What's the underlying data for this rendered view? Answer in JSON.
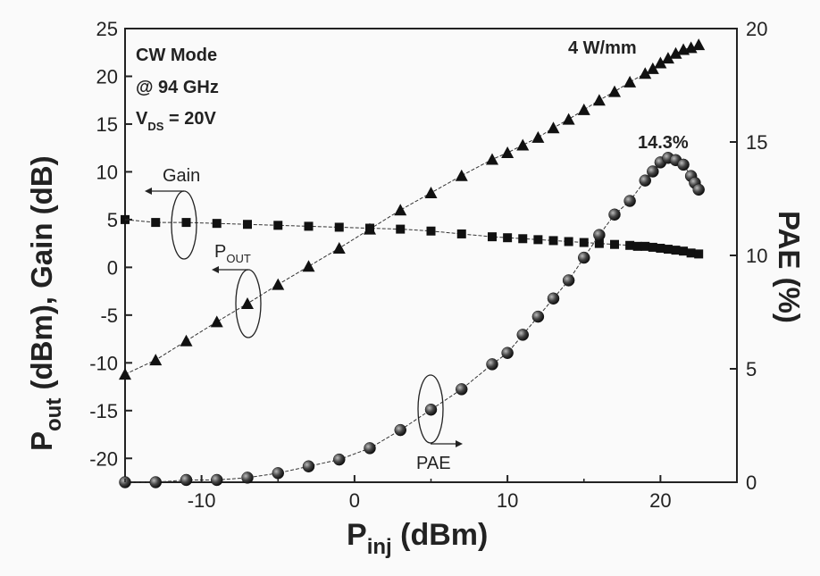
{
  "chart_data": {
    "type": "scatter",
    "title": "",
    "xlabel": "P",
    "xlabel_sub": "inj",
    "xlabel_unit": " (dBm)",
    "ylabel_left": "P",
    "ylabel_left_sub": "out",
    "ylabel_left_rest": " (dBm), Gain (dB)",
    "ylabel_right": "PAE (%)",
    "xlim": [
      -15,
      25
    ],
    "ylim_left": [
      -22.5,
      25
    ],
    "ylim_right": [
      0,
      20
    ],
    "x_ticks": [
      -10,
      0,
      10,
      20
    ],
    "y_left_ticks": [
      -20,
      -15,
      -10,
      -5,
      0,
      5,
      10,
      15,
      20,
      25
    ],
    "y_right_ticks": [
      0,
      5,
      10,
      15,
      20
    ],
    "grid": false,
    "series": [
      {
        "axis": "left",
        "marker": "triangle",
        "x": [
          -15,
          -13,
          -11,
          -9,
          -7,
          -5,
          -3,
          -1,
          1,
          3,
          5,
          7,
          9,
          10,
          11,
          12,
          13,
          14,
          15,
          16,
          17,
          18,
          19,
          19.5,
          20,
          20.5,
          21,
          21.5,
          22,
          22.5
        ],
        "y": [
          -11.2,
          -9.7,
          -7.7,
          -5.7,
          -3.8,
          -1.8,
          0.1,
          2,
          4,
          6,
          7.8,
          9.6,
          11.3,
          12,
          12.8,
          13.6,
          14.6,
          15.5,
          16.5,
          17.5,
          18.4,
          19.4,
          20.3,
          20.8,
          21.4,
          21.9,
          22.4,
          22.8,
          23,
          23.3
        ]
      },
      {
        "axis": "left",
        "marker": "square",
        "x": [
          -15,
          -13,
          -11,
          -9,
          -7,
          -5,
          -3,
          -1,
          1,
          3,
          5,
          7,
          9,
          10,
          11,
          12,
          13,
          14,
          15,
          16,
          17,
          18,
          18.5,
          19,
          19.5,
          20,
          20.5,
          21,
          21.5,
          22,
          22.5
        ],
        "y": [
          5,
          4.7,
          4.7,
          4.6,
          4.5,
          4.4,
          4.3,
          4.2,
          4.1,
          4,
          3.8,
          3.5,
          3.2,
          3.1,
          3,
          2.9,
          2.8,
          2.7,
          2.6,
          2.5,
          2.4,
          2.3,
          2.2,
          2.2,
          2.1,
          2,
          1.9,
          1.8,
          1.7,
          1.5,
          1.4
        ]
      },
      {
        "axis": "right",
        "marker": "sphere",
        "x": [
          -15,
          -13,
          -11,
          -9,
          -7,
          -5,
          -3,
          -1,
          1,
          3,
          5,
          7,
          9,
          10,
          11,
          12,
          13,
          14,
          15,
          16,
          17,
          18,
          19,
          19.5,
          20,
          20.5,
          21,
          21.5,
          22,
          22.25,
          22.5
        ],
        "y": [
          0,
          0,
          0.1,
          0.1,
          0.2,
          0.4,
          0.7,
          1,
          1.5,
          2.3,
          3.2,
          4.1,
          5.2,
          5.7,
          6.5,
          7.3,
          8.1,
          8.9,
          9.9,
          10.9,
          11.8,
          12.4,
          13.3,
          13.7,
          14.1,
          14.3,
          14.2,
          14,
          13.5,
          13.2,
          12.9
        ]
      }
    ],
    "annotations": {
      "cw_mode": "CW Mode",
      "freq": "@ 94 GHz",
      "vds_label": "V",
      "vds_sub": "DS",
      "vds_value": " = 20V",
      "power_density": "4 W/mm",
      "peak_pae": "14.3%",
      "gain_label": "Gain",
      "pout_label": "P",
      "pout_sub": "OUT",
      "pae_label": "PAE"
    }
  }
}
